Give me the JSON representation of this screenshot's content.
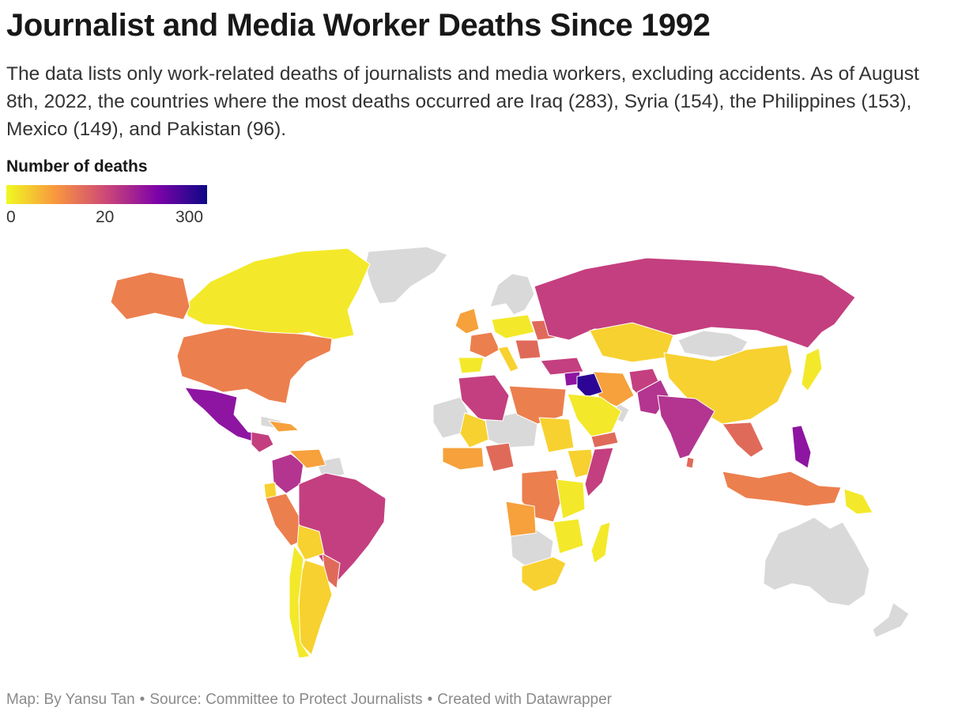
{
  "header": {
    "title": "Journalist and Media Worker Deaths Since 1992",
    "description": "The data lists only work-related deaths of journalists and media workers, excluding accidents. As of August 8th, 2022, the countries where the most deaths occurred are Iraq (283), Syria (154), the Philippines (153), Mexico (149), and Pakistan (96)."
  },
  "legend": {
    "title": "Number of deaths",
    "ticks": [
      "0",
      "20",
      "300"
    ],
    "stops": [
      "#f0f921",
      "#f89540",
      "#cc4778",
      "#7e03a8",
      "#0d0887"
    ]
  },
  "colors": {
    "no_data": "#d9d9d9",
    "c0": "#f3e92a",
    "c1": "#f7d12f",
    "c2": "#f6a13b",
    "c3": "#ec7f4e",
    "c4": "#e06a5a",
    "c5": "#c43f7f",
    "c6": "#b33590",
    "c7": "#8e15a2",
    "c8": "#2c0594"
  },
  "footer": {
    "map_credit": "Map: By Yansu Tan",
    "source": "Source: Committee to Protect Journalists",
    "tool": "Created with Datawrapper",
    "separator": "•"
  }
}
